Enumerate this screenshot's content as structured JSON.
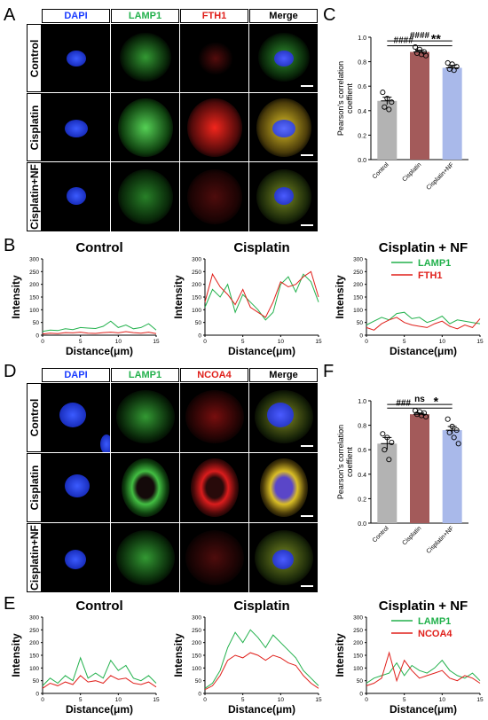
{
  "panels": {
    "A": "A",
    "B": "B",
    "C": "C",
    "D": "D",
    "E": "E",
    "F": "F"
  },
  "micro_top": {
    "columns": [
      "DAPI",
      "LAMP1",
      "FTH1",
      "Merge"
    ],
    "rows": [
      "Control",
      "Cisplatin",
      "Cisplatin+NF"
    ]
  },
  "micro_bottom": {
    "columns": [
      "DAPI",
      "LAMP1",
      "NCOA4",
      "Merge"
    ],
    "rows": [
      "Control",
      "Cisplatin",
      "Cisplatin+NF"
    ]
  },
  "colors": {
    "dapi": "#1a3cff",
    "lamp1": "#22b14c",
    "red": "#e0201b",
    "bar_control": "#b3b3b3",
    "bar_cisplatin": "#a35a5a",
    "bar_nf": "#a9b9ea"
  },
  "chart_data": [
    {
      "id": "C",
      "type": "bar",
      "ylabel": "Pearson's correlation coeffient",
      "categories": [
        "Control",
        "Cisplatin",
        "Cisplatin+NF"
      ],
      "values": [
        0.48,
        0.88,
        0.75
      ],
      "errors": [
        0.03,
        0.015,
        0.02
      ],
      "points": [
        [
          0.55,
          0.5,
          0.47,
          0.43,
          0.41
        ],
        [
          0.92,
          0.9,
          0.88,
          0.87,
          0.86,
          0.85
        ],
        [
          0.79,
          0.78,
          0.76,
          0.74,
          0.73
        ]
      ],
      "ylim": [
        0,
        1.0
      ],
      "yticks": [
        "0.0",
        "0.2",
        "0.4",
        "0.6",
        "0.8",
        "1.0"
      ],
      "annotations": [
        {
          "text": "####",
          "from": 0,
          "to": 2
        },
        {
          "text": "####",
          "from": 0,
          "to": 1
        },
        {
          "text": "**",
          "from": 1,
          "to": 2
        }
      ]
    },
    {
      "id": "F",
      "type": "bar",
      "ylabel": "Pearson's correlation coeffient",
      "categories": [
        "Control",
        "Cisplatin",
        "Cisplatin+NF"
      ],
      "values": [
        0.65,
        0.89,
        0.76
      ],
      "errors": [
        0.05,
        0.01,
        0.03
      ],
      "points": [
        [
          0.73,
          0.7,
          0.66,
          0.6,
          0.52
        ],
        [
          0.92,
          0.91,
          0.9,
          0.89,
          0.88,
          0.87
        ],
        [
          0.85,
          0.79,
          0.76,
          0.74,
          0.7,
          0.65
        ]
      ],
      "ylim": [
        0,
        1.0
      ],
      "yticks": [
        "0.0",
        "0.2",
        "0.4",
        "0.6",
        "0.8",
        "1.0"
      ],
      "annotations": [
        {
          "text": "ns",
          "from": 0,
          "to": 2
        },
        {
          "text": "###",
          "from": 0,
          "to": 1
        },
        {
          "text": "*",
          "from": 1,
          "to": 2
        }
      ]
    },
    {
      "id": "B1",
      "type": "line",
      "title": "Control",
      "xlabel": "Distance(μm)",
      "ylabel": "Intensity",
      "xlim": [
        0,
        15
      ],
      "ylim": [
        0,
        300
      ],
      "xticks": [
        "0",
        "5",
        "10",
        "15"
      ],
      "yticks": [
        "0",
        "50",
        "100",
        "150",
        "200",
        "250",
        "300"
      ],
      "series": [
        {
          "color": "#22b14c",
          "x": [
            0,
            1,
            2,
            3,
            4,
            5,
            6,
            7,
            8,
            9,
            10,
            11,
            12,
            13,
            14,
            15
          ],
          "y": [
            15,
            20,
            18,
            25,
            22,
            30,
            28,
            26,
            35,
            55,
            30,
            40,
            25,
            30,
            45,
            20
          ]
        },
        {
          "color": "#e0201b",
          "x": [
            0,
            1,
            2,
            3,
            4,
            5,
            6,
            7,
            8,
            9,
            10,
            11,
            12,
            13,
            14,
            15
          ],
          "y": [
            5,
            8,
            6,
            10,
            9,
            12,
            8,
            7,
            10,
            12,
            9,
            14,
            10,
            8,
            12,
            6
          ]
        }
      ]
    },
    {
      "id": "B2",
      "type": "line",
      "title": "Cisplatin",
      "xlabel": "Distance(μm)",
      "ylabel": "Intensity",
      "xlim": [
        0,
        15
      ],
      "ylim": [
        0,
        300
      ],
      "xticks": [
        "0",
        "5",
        "10",
        "15"
      ],
      "yticks": [
        "0",
        "50",
        "100",
        "150",
        "200",
        "250",
        "300"
      ],
      "series": [
        {
          "color": "#22b14c",
          "x": [
            0,
            1,
            2,
            3,
            4,
            5,
            6,
            7,
            8,
            9,
            10,
            11,
            12,
            13,
            14,
            15
          ],
          "y": [
            110,
            180,
            150,
            200,
            90,
            160,
            130,
            100,
            60,
            90,
            200,
            230,
            170,
            240,
            210,
            130
          ]
        },
        {
          "color": "#e0201b",
          "x": [
            0,
            1,
            2,
            3,
            4,
            5,
            6,
            7,
            8,
            9,
            10,
            11,
            12,
            13,
            14,
            15
          ],
          "y": [
            130,
            240,
            190,
            160,
            120,
            180,
            110,
            90,
            70,
            130,
            210,
            190,
            200,
            230,
            250,
            150
          ]
        }
      ]
    },
    {
      "id": "B3",
      "type": "line",
      "title": "Cisplatin + NF",
      "xlabel": "Distance(μm)",
      "ylabel": "Intensity",
      "xlim": [
        0,
        15
      ],
      "ylim": [
        0,
        300
      ],
      "xticks": [
        "0",
        "5",
        "10",
        "15"
      ],
      "yticks": [
        "0",
        "50",
        "100",
        "150",
        "200",
        "250",
        "300"
      ],
      "legend": [
        "LAMP1",
        "FTH1"
      ],
      "series": [
        {
          "name": "LAMP1",
          "color": "#22b14c",
          "x": [
            0,
            1,
            2,
            3,
            4,
            5,
            6,
            7,
            8,
            9,
            10,
            11,
            12,
            13,
            14,
            15
          ],
          "y": [
            40,
            55,
            70,
            60,
            85,
            90,
            65,
            70,
            50,
            60,
            75,
            45,
            60,
            55,
            50,
            45
          ]
        },
        {
          "name": "FTH1",
          "color": "#e0201b",
          "x": [
            0,
            1,
            2,
            3,
            4,
            5,
            6,
            7,
            8,
            9,
            10,
            11,
            12,
            13,
            14,
            15
          ],
          "y": [
            30,
            20,
            45,
            60,
            70,
            50,
            40,
            35,
            30,
            45,
            55,
            35,
            25,
            40,
            30,
            65
          ]
        }
      ]
    },
    {
      "id": "E1",
      "type": "line",
      "title": "Control",
      "xlabel": "Distance(μm)",
      "ylabel": "Intensity",
      "xlim": [
        0,
        15
      ],
      "ylim": [
        0,
        300
      ],
      "xticks": [
        "0",
        "5",
        "10",
        "15"
      ],
      "yticks": [
        "0",
        "50",
        "100",
        "150",
        "200",
        "250",
        "300"
      ],
      "series": [
        {
          "color": "#22b14c",
          "x": [
            0,
            1,
            2,
            3,
            4,
            5,
            6,
            7,
            8,
            9,
            10,
            11,
            12,
            13,
            14,
            15
          ],
          "y": [
            30,
            60,
            40,
            70,
            50,
            140,
            60,
            80,
            60,
            130,
            90,
            110,
            60,
            50,
            70,
            40
          ]
        },
        {
          "color": "#e0201b",
          "x": [
            0,
            1,
            2,
            3,
            4,
            5,
            6,
            7,
            8,
            9,
            10,
            11,
            12,
            13,
            14,
            15
          ],
          "y": [
            20,
            40,
            30,
            45,
            35,
            70,
            45,
            50,
            40,
            70,
            55,
            60,
            40,
            35,
            45,
            25
          ]
        }
      ]
    },
    {
      "id": "E2",
      "type": "line",
      "title": "Cisplatin",
      "xlabel": "Distance(μm)",
      "ylabel": "Intensity",
      "xlim": [
        0,
        15
      ],
      "ylim": [
        0,
        300
      ],
      "xticks": [
        "0",
        "5",
        "10",
        "15"
      ],
      "yticks": [
        "0",
        "50",
        "100",
        "150",
        "200",
        "250",
        "300"
      ],
      "series": [
        {
          "color": "#22b14c",
          "x": [
            0,
            1,
            2,
            3,
            4,
            5,
            6,
            7,
            8,
            9,
            10,
            11,
            12,
            13,
            14,
            15
          ],
          "y": [
            20,
            40,
            90,
            180,
            240,
            200,
            250,
            220,
            180,
            230,
            200,
            170,
            140,
            90,
            60,
            30
          ]
        },
        {
          "color": "#e0201b",
          "x": [
            0,
            1,
            2,
            3,
            4,
            5,
            6,
            7,
            8,
            9,
            10,
            11,
            12,
            13,
            14,
            15
          ],
          "y": [
            15,
            30,
            70,
            130,
            150,
            140,
            160,
            150,
            130,
            150,
            140,
            120,
            110,
            70,
            40,
            20
          ]
        }
      ]
    },
    {
      "id": "E3",
      "type": "line",
      "title": "Cisplatin + NF",
      "xlabel": "Distance(μm)",
      "ylabel": "Intensity",
      "xlim": [
        0,
        15
      ],
      "ylim": [
        0,
        300
      ],
      "xticks": [
        "0",
        "5",
        "10",
        "15"
      ],
      "yticks": [
        "0",
        "50",
        "100",
        "150",
        "200",
        "250",
        "300"
      ],
      "legend": [
        "LAMP1",
        "NCOA4"
      ],
      "series": [
        {
          "name": "LAMP1",
          "color": "#22b14c",
          "x": [
            0,
            1,
            2,
            3,
            4,
            5,
            6,
            7,
            8,
            9,
            10,
            11,
            12,
            13,
            14,
            15
          ],
          "y": [
            40,
            60,
            70,
            80,
            120,
            70,
            110,
            90,
            80,
            100,
            130,
            90,
            70,
            60,
            80,
            50
          ]
        },
        {
          "name": "NCOA4",
          "color": "#e0201b",
          "x": [
            0,
            1,
            2,
            3,
            4,
            5,
            6,
            7,
            8,
            9,
            10,
            11,
            12,
            13,
            14,
            15
          ],
          "y": [
            30,
            40,
            60,
            160,
            50,
            130,
            90,
            60,
            70,
            80,
            90,
            60,
            50,
            70,
            60,
            40
          ]
        }
      ]
    }
  ]
}
